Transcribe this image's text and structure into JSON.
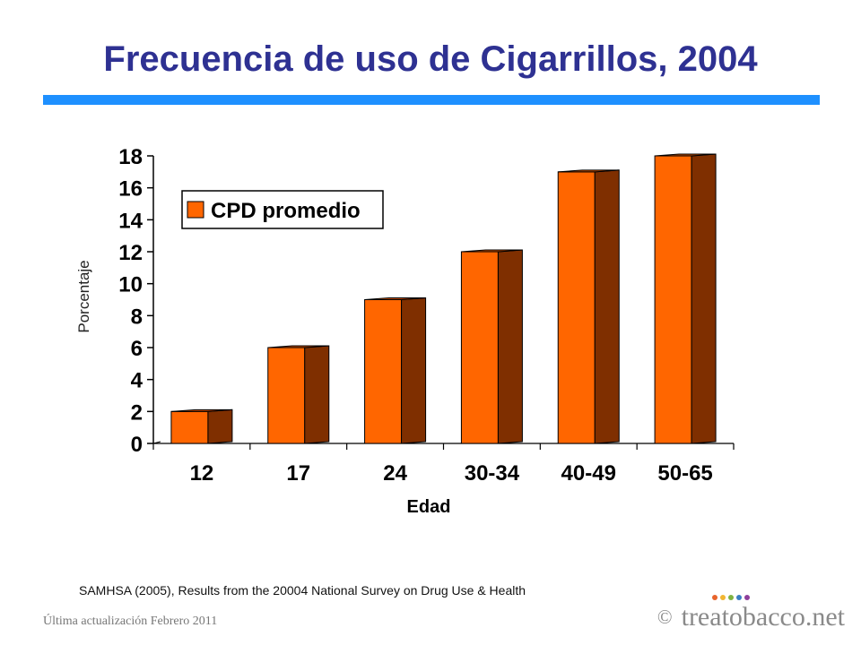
{
  "slide": {
    "title": "Frecuencia de uso de Cigarrillos, 2004",
    "citation": "SAMHSA (2005), Results from the 20004 National Survey on Drug Use & Health",
    "footer_left": "Última actualización Febrero 2011",
    "footer_copyright": "©",
    "brand": "treatobacco.net",
    "brand_dot_colors": [
      "#e8642c",
      "#f2b632",
      "#7fb241",
      "#3a7ec2",
      "#8e3f9b"
    ]
  },
  "chart_data": {
    "type": "bar",
    "categories": [
      "12",
      "17",
      "24",
      "30-34",
      "40-49",
      "50-65"
    ],
    "series": [
      {
        "name": "CPD promedio",
        "values": [
          2,
          6,
          9,
          12,
          17,
          18
        ]
      }
    ],
    "xlabel": "Edad",
    "ylabel": "Porcentaje",
    "ylim": [
      0,
      18
    ],
    "yticks": [
      0,
      2,
      4,
      6,
      8,
      10,
      12,
      14,
      16,
      18
    ],
    "legend_position": "top-left",
    "grid": false,
    "three_d": true,
    "colors": {
      "bar_front": "#ff6600",
      "bar_side": "#7f2f00",
      "bar_top": "#c04a00"
    }
  }
}
